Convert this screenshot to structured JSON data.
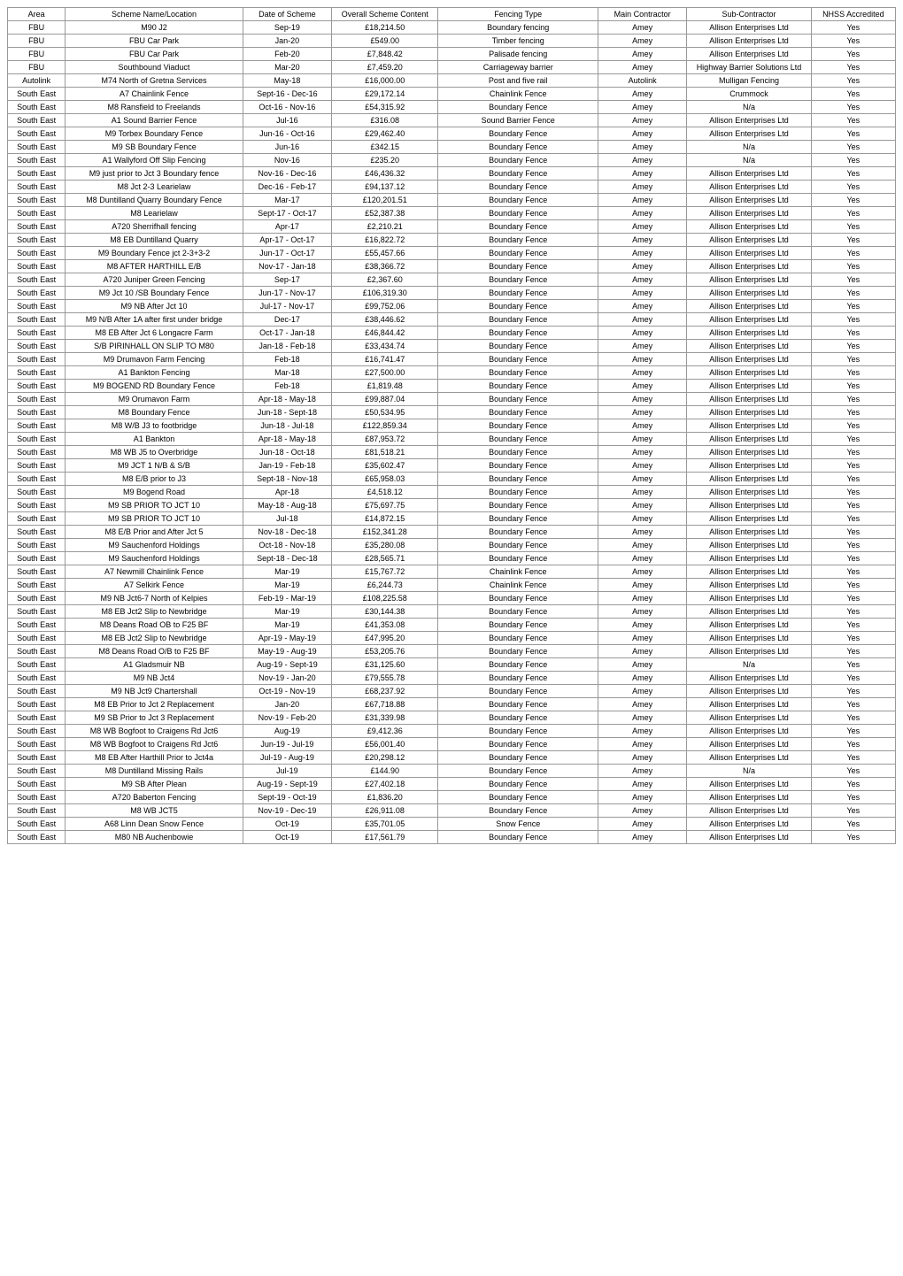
{
  "table": {
    "columns": [
      "Area",
      "Scheme Name/Location",
      "Date of Scheme",
      "Overall Scheme Content",
      "Fencing Type",
      "Main Contractor",
      "Sub-Contractor",
      "NHSS Accredited"
    ],
    "rows": [
      [
        "FBU",
        "M90 J2",
        "Sep-19",
        "£18,214.50",
        "Boundary fencing",
        "Amey",
        "Allison Enterprises Ltd",
        "Yes"
      ],
      [
        "FBU",
        "FBU Car Park",
        "Jan-20",
        "£549.00",
        "Timber fencing",
        "Amey",
        "Allison Enterprises Ltd",
        "Yes"
      ],
      [
        "FBU",
        "FBU Car Park",
        "Feb-20",
        "£7,848.42",
        "Palisade fencing",
        "Amey",
        "Allison Enterprises Ltd",
        "Yes"
      ],
      [
        "FBU",
        "Southbound Viaduct",
        "Mar-20",
        "£7,459.20",
        "Carriageway barrier",
        "Amey",
        "Highway Barrier Solutions Ltd",
        "Yes"
      ],
      [
        "Autolink",
        "M74 North of Gretna Services",
        "May-18",
        "£16,000.00",
        "Post and five rail",
        "Autolink",
        "Mulligan Fencing",
        "Yes"
      ],
      [
        "South East",
        "A7 Chainlink Fence",
        "Sept-16 - Dec-16",
        "£29,172.14",
        "Chainlink Fence",
        "Amey",
        "Crummock",
        "Yes"
      ],
      [
        "South East",
        "M8 Ransfield to Freelands",
        "Oct-16 - Nov-16",
        "£54,315.92",
        "Boundary Fence",
        "Amey",
        "N/a",
        "Yes"
      ],
      [
        "South East",
        "A1 Sound Barrier Fence",
        "Jul-16",
        "£316.08",
        "Sound Barrier Fence",
        "Amey",
        "Allison Enterprises Ltd",
        "Yes"
      ],
      [
        "South East",
        "M9 Torbex Boundary Fence",
        "Jun-16 - Oct-16",
        "£29,462.40",
        "Boundary Fence",
        "Amey",
        "Allison Enterprises Ltd",
        "Yes"
      ],
      [
        "South East",
        "M9 SB Boundary Fence",
        "Jun-16",
        "£342.15",
        "Boundary Fence",
        "Amey",
        "N/a",
        "Yes"
      ],
      [
        "South East",
        "A1 Wallyford Off Slip Fencing",
        "Nov-16",
        "£235.20",
        "Boundary Fence",
        "Amey",
        "N/a",
        "Yes"
      ],
      [
        "South East",
        "M9 just prior to Jct 3 Boundary fence",
        "Nov-16 - Dec-16",
        "£46,436.32",
        "Boundary Fence",
        "Amey",
        "Allison Enterprises Ltd",
        "Yes"
      ],
      [
        "South East",
        "M8 Jct 2-3 Learielaw",
        "Dec-16 - Feb-17",
        "£94,137.12",
        "Boundary Fence",
        "Amey",
        "Allison Enterprises Ltd",
        "Yes"
      ],
      [
        "South East",
        "M8 Duntilland Quarry Boundary Fence",
        "Mar-17",
        "£120,201.51",
        "Boundary Fence",
        "Amey",
        "Allison Enterprises Ltd",
        "Yes"
      ],
      [
        "South East",
        "M8 Learielaw",
        "Sept-17 - Oct-17",
        "£52,387.38",
        "Boundary Fence",
        "Amey",
        "Allison Enterprises Ltd",
        "Yes"
      ],
      [
        "South East",
        "A720 Sherrifhall fencing",
        "Apr-17",
        "£2,210.21",
        "Boundary Fence",
        "Amey",
        "Allison Enterprises Ltd",
        "Yes"
      ],
      [
        "South East",
        "M8 EB Duntilland Quarry",
        "Apr-17 - Oct-17",
        "£16,822.72",
        "Boundary Fence",
        "Amey",
        "Allison Enterprises Ltd",
        "Yes"
      ],
      [
        "South East",
        "M9 Boundary Fence jct 2-3+3-2",
        "Jun-17 - Oct-17",
        "£55,457.66",
        "Boundary Fence",
        "Amey",
        "Allison Enterprises Ltd",
        "Yes"
      ],
      [
        "South East",
        "M8 AFTER  HARTHILL E/B",
        "Nov-17 - Jan-18",
        "£38,366.72",
        "Boundary Fence",
        "Amey",
        "Allison Enterprises Ltd",
        "Yes"
      ],
      [
        "South East",
        "A720 Juniper Green Fencing",
        "Sep-17",
        "£2,367.60",
        "Boundary Fence",
        "Amey",
        "Allison Enterprises Ltd",
        "Yes"
      ],
      [
        "South East",
        "M9 Jct 10 /SB  Boundary Fence",
        "Jun-17 - Nov-17",
        "£106,319.30",
        "Boundary Fence",
        "Amey",
        "Allison Enterprises Ltd",
        "Yes"
      ],
      [
        "South East",
        "M9 NB After Jct 10",
        "Jul-17 - Nov-17",
        "£99,752.06",
        "Boundary Fence",
        "Amey",
        "Allison Enterprises Ltd",
        "Yes"
      ],
      [
        "South East",
        "M9 N/B After 1A after first under bridge",
        "Dec-17",
        "£38,446.62",
        "Boundary Fence",
        "Amey",
        "Allison Enterprises Ltd",
        "Yes"
      ],
      [
        "South East",
        "M8 EB After Jct 6 Longacre Farm",
        "Oct-17 - Jan-18",
        "£46,844.42",
        "Boundary Fence",
        "Amey",
        "Allison Enterprises Ltd",
        "Yes"
      ],
      [
        "South East",
        "S/B PIRINHALL ON SLIP TO M80",
        "Jan-18 - Feb-18",
        "£33,434.74",
        "Boundary Fence",
        "Amey",
        "Allison Enterprises Ltd",
        "Yes"
      ],
      [
        "South East",
        "M9 Drumavon Farm Fencing",
        "Feb-18",
        "£16,741.47",
        "Boundary Fence",
        "Amey",
        "Allison Enterprises Ltd",
        "Yes"
      ],
      [
        "South East",
        "A1 Bankton Fencing",
        "Mar-18",
        "£27,500.00",
        "Boundary Fence",
        "Amey",
        "Allison Enterprises Ltd",
        "Yes"
      ],
      [
        "South East",
        "M9 BOGEND RD Boundary Fence",
        "Feb-18",
        "£1,819.48",
        "Boundary Fence",
        "Amey",
        "Allison Enterprises Ltd",
        "Yes"
      ],
      [
        "South East",
        "M9 Orumavon Farm",
        "Apr-18 - May-18",
        "£99,887.04",
        "Boundary Fence",
        "Amey",
        "Allison Enterprises Ltd",
        "Yes"
      ],
      [
        "South East",
        "M8 Boundary Fence",
        "Jun-18 - Sept-18",
        "£50,534.95",
        "Boundary Fence",
        "Amey",
        "Allison Enterprises Ltd",
        "Yes"
      ],
      [
        "South East",
        "M8 W/B J3 to footbridge",
        "Jun-18 - Jul-18",
        "£122,859.34",
        "Boundary Fence",
        "Amey",
        "Allison Enterprises Ltd",
        "Yes"
      ],
      [
        "South East",
        "A1 Bankton",
        "Apr-18 - May-18",
        "£87,953.72",
        "Boundary Fence",
        "Amey",
        "Allison Enterprises Ltd",
        "Yes"
      ],
      [
        "South East",
        "M8 WB J5 to Overbridge",
        "Jun-18 - Oct-18",
        "£81,518.21",
        "Boundary Fence",
        "Amey",
        "Allison Enterprises Ltd",
        "Yes"
      ],
      [
        "South East",
        "M9 JCT 1 N/B & S/B",
        "Jan-19 - Feb-18",
        "£35,602.47",
        "Boundary Fence",
        "Amey",
        "Allison Enterprises Ltd",
        "Yes"
      ],
      [
        "South East",
        "M8 E/B prior to J3",
        "Sept-18 - Nov-18",
        "£65,958.03",
        "Boundary Fence",
        "Amey",
        "Allison Enterprises Ltd",
        "Yes"
      ],
      [
        "South East",
        "M9 Bogend Road",
        "Apr-18",
        "£4,518.12",
        "Boundary Fence",
        "Amey",
        "Allison Enterprises Ltd",
        "Yes"
      ],
      [
        "South East",
        "M9 SB PRIOR TO JCT 10",
        "May-18 - Aug-18",
        "£75,697.75",
        "Boundary Fence",
        "Amey",
        "Allison Enterprises Ltd",
        "Yes"
      ],
      [
        "South East",
        "M9 SB PRIOR TO JCT 10",
        "Jul-18",
        "£14,872.15",
        "Boundary Fence",
        "Amey",
        "Allison Enterprises Ltd",
        "Yes"
      ],
      [
        "South East",
        "M8 E/B Prior and After Jct 5",
        "Nov-18 - Dec-18",
        "£152,341.28",
        "Boundary Fence",
        "Amey",
        "Allison Enterprises Ltd",
        "Yes"
      ],
      [
        "South East",
        "M9 Sauchenford Holdings",
        "Oct-18 - Nov-18",
        "£35,280.08",
        "Boundary Fence",
        "Amey",
        "Allison Enterprises Ltd",
        "Yes"
      ],
      [
        "South East",
        "M9 Sauchenford Holdings",
        "Sept-18 - Dec-18",
        "£28,565.71",
        "Boundary Fence",
        "Amey",
        "Allison Enterprises Ltd",
        "Yes"
      ],
      [
        "South East",
        "A7 Newmill Chainlink Fence",
        "Mar-19",
        "£15,767.72",
        "Chainlink Fence",
        "Amey",
        "Allison Enterprises Ltd",
        "Yes"
      ],
      [
        "South East",
        "A7 Selkirk Fence",
        "Mar-19",
        "£6,244.73",
        "Chainlink Fence",
        "Amey",
        "Allison Enterprises Ltd",
        "Yes"
      ],
      [
        "South East",
        "M9 NB Jct6-7 North of Kelpies",
        "Feb-19 - Mar-19",
        "£108,225.58",
        "Boundary Fence",
        "Amey",
        "Allison Enterprises Ltd",
        "Yes"
      ],
      [
        "South East",
        "M8 EB Jct2 Slip to Newbridge",
        "Mar-19",
        "£30,144.38",
        "Boundary Fence",
        "Amey",
        "Allison Enterprises Ltd",
        "Yes"
      ],
      [
        "South East",
        "M8 Deans Road OB to F25 BF",
        "Mar-19",
        "£41,353.08",
        "Boundary Fence",
        "Amey",
        "Allison Enterprises Ltd",
        "Yes"
      ],
      [
        "South East",
        "M8 EB Jct2 Slip to Newbridge",
        "Apr-19 - May-19",
        "£47,995.20",
        "Boundary Fence",
        "Amey",
        "Allison Enterprises Ltd",
        "Yes"
      ],
      [
        "South East",
        "M8 Deans Road O/B to F25 BF",
        "May-19 - Aug-19",
        "£53,205.76",
        "Boundary Fence",
        "Amey",
        "Allison Enterprises Ltd",
        "Yes"
      ],
      [
        "South East",
        "A1 Gladsmuir NB",
        "Aug-19 - Sept-19",
        "£31,125.60",
        "Boundary Fence",
        "Amey",
        "N/a",
        "Yes"
      ],
      [
        "South East",
        "M9 NB Jct4",
        "Nov-19 - Jan-20",
        "£79,555.78",
        "Boundary Fence",
        "Amey",
        "Allison Enterprises Ltd",
        "Yes"
      ],
      [
        "South East",
        "M9 NB Jct9 Chartershall",
        "Oct-19 - Nov-19",
        "£68,237.92",
        "Boundary Fence",
        "Amey",
        "Allison Enterprises Ltd",
        "Yes"
      ],
      [
        "South East",
        "M8 EB Prior to Jct 2  Replacement",
        "Jan-20",
        "£67,718.88",
        "Boundary Fence",
        "Amey",
        "Allison Enterprises Ltd",
        "Yes"
      ],
      [
        "South East",
        "M9 SB Prior to Jct 3  Replacement",
        "Nov-19 - Feb-20",
        "£31,339.98",
        "Boundary Fence",
        "Amey",
        "Allison Enterprises Ltd",
        "Yes"
      ],
      [
        "South East",
        "M8 WB Bogfoot to Craigens Rd Jct6",
        "Aug-19",
        "£9,412.36",
        "Boundary Fence",
        "Amey",
        "Allison Enterprises Ltd",
        "Yes"
      ],
      [
        "South East",
        "M8 WB Bogfoot to Craigens Rd Jct6",
        "Jun-19 - Jul-19",
        "£56,001.40",
        "Boundary Fence",
        "Amey",
        "Allison Enterprises Ltd",
        "Yes"
      ],
      [
        "South East",
        "M8 EB After Harthill Prior to Jct4a",
        "Jul-19 - Aug-19",
        "£20,298.12",
        "Boundary Fence",
        "Amey",
        "Allison Enterprises Ltd",
        "Yes"
      ],
      [
        "South East",
        "M8 Duntilland Missing Rails",
        "Jul-19",
        "£144.90",
        "Boundary Fence",
        "Amey",
        "N/a",
        "Yes"
      ],
      [
        "South East",
        "M9 SB After Plean",
        "Aug-19 - Sept-19",
        "£27,402.18",
        "Boundary Fence",
        "Amey",
        "Allison Enterprises Ltd",
        "Yes"
      ],
      [
        "South East",
        "A720 Baberton Fencing",
        "Sept-19 - Oct-19",
        "£1,836.20",
        "Boundary Fence",
        "Amey",
        "Allison Enterprises Ltd",
        "Yes"
      ],
      [
        "South East",
        "M8 WB JCT5",
        "Nov-19 - Dec-19",
        "£26,911.08",
        "Boundary Fence",
        "Amey",
        "Allison Enterprises Ltd",
        "Yes"
      ],
      [
        "South East",
        "A68 Linn Dean Snow Fence",
        "Oct-19",
        "£35,701.05",
        "Snow Fence",
        "Amey",
        "Allison Enterprises Ltd",
        "Yes"
      ],
      [
        "South East",
        "M80 NB Auchenbowie",
        "Oct-19",
        "£17,561.79",
        "Boundary Fence",
        "Amey",
        "Allison Enterprises Ltd",
        "Yes"
      ]
    ]
  }
}
